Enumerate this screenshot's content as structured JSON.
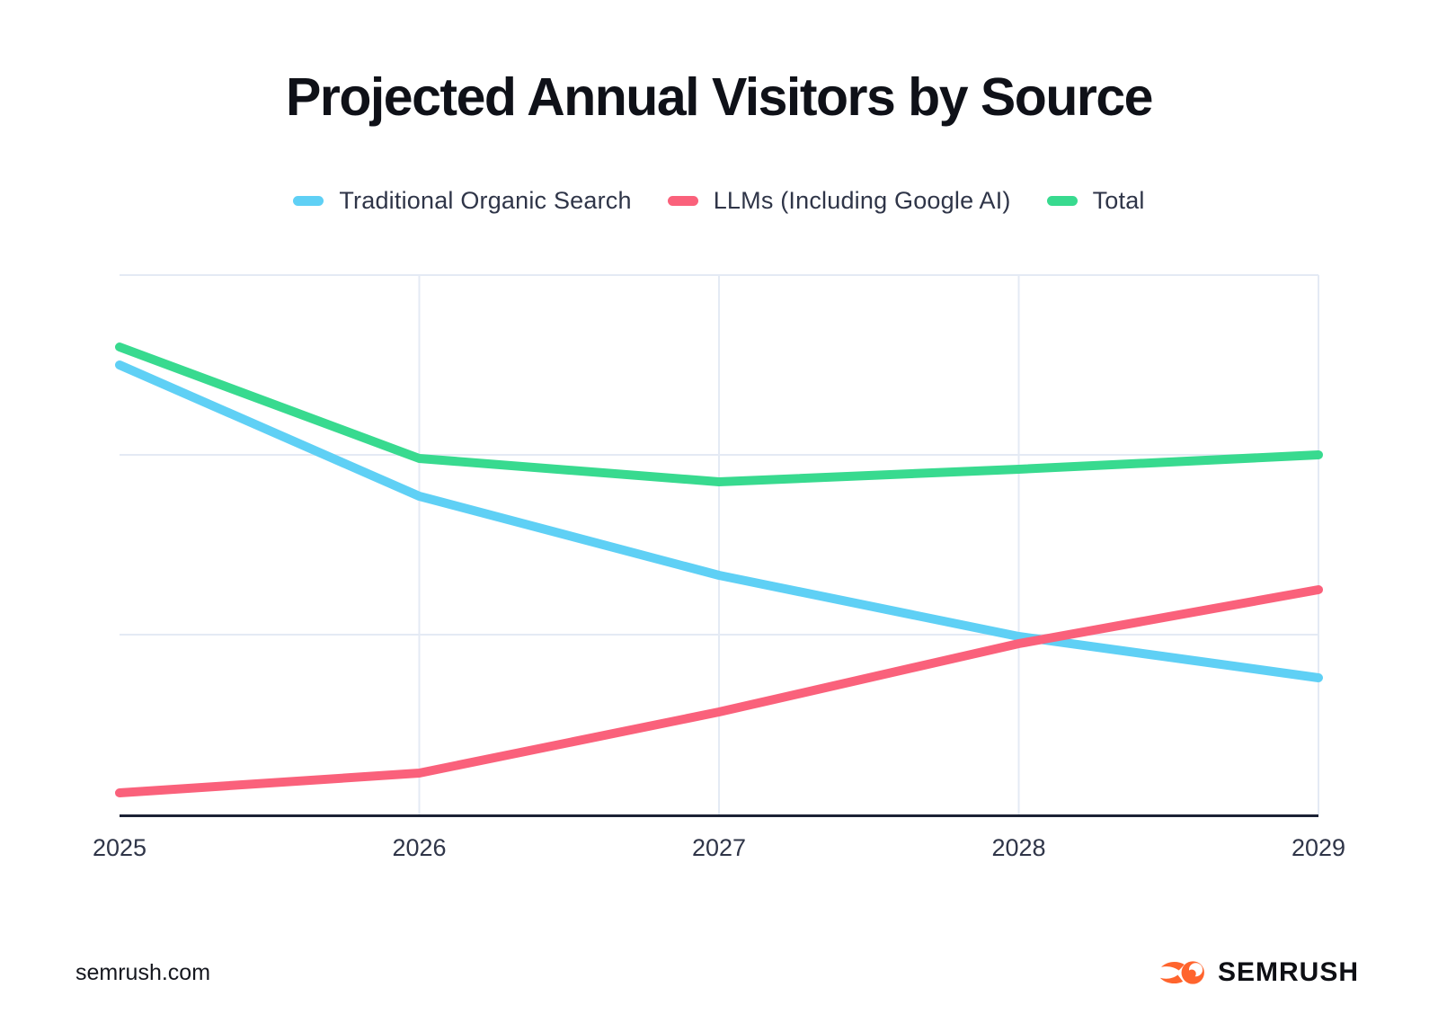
{
  "page": {
    "title": "Projected Annual Visitors by Source",
    "footer": {
      "site_label": "semrush.com",
      "brand_name": "SEMRUSH"
    }
  },
  "chart_data": {
    "type": "line",
    "title": "Projected Annual Visitors by Source",
    "categories": [
      "2025",
      "2026",
      "2027",
      "2028",
      "2029"
    ],
    "series": [
      {
        "name": "Traditional Organic Search",
        "color": "#5fd0f5",
        "values": [
          2.5,
          1.77,
          1.33,
          0.99,
          0.76
        ]
      },
      {
        "name": "LLMs (Including Google AI)",
        "color": "#fa617b",
        "values": [
          0.12,
          0.23,
          0.57,
          0.95,
          1.25
        ]
      },
      {
        "name": "Total",
        "color": "#38da8f",
        "values": [
          2.6,
          1.98,
          1.85,
          1.92,
          2.0
        ]
      }
    ],
    "xlabel": "",
    "ylabel": "",
    "y_axis_labels_shown": false,
    "ylim": [
      0,
      3.05
    ],
    "gridlines_y_at_values": [
      1,
      2,
      3
    ],
    "grid": true,
    "legend_position": "top",
    "note": "No numeric y-axis labels are shown in the figure; values are relative units where 1 unit equals one horizontal-gridline spacing (Total is approximately the sum of the two sources)."
  },
  "style": {
    "background": "#ffffff",
    "grid_color": "#e4eaf4",
    "axis_color": "#1b2134",
    "title_color": "#0f1118",
    "label_color": "#2f3548",
    "brand_orange": "#ff642d"
  }
}
